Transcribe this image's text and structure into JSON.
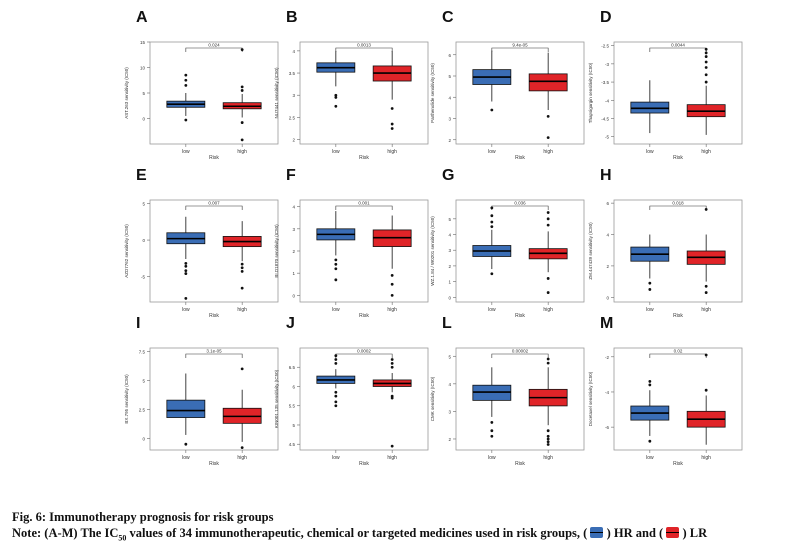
{
  "figure": {
    "title": "Fig. 6: Immunotherapy prognosis for risk groups",
    "note_prefix": "Note: (A-M) The IC",
    "note_sub": "50",
    "note_mid": " values of 34 immunotherapeutic, chemical or targeted medicines used in risk groups, (",
    "note_hr": ") HR and (",
    "note_lr": ") LR",
    "colors": {
      "low": "#3a6db5",
      "high": "#e02428",
      "dots": "#111111",
      "frame": "#9a9a9a"
    }
  },
  "chart_data": [
    {
      "panel": "A",
      "type": "box",
      "ylabel": "AST.263 sensitivity (IC50)",
      "xlabel": "Risk",
      "categories": [
        "low",
        "high"
      ],
      "yticks": [
        0,
        5,
        10,
        15
      ],
      "ylim": [
        -5,
        15
      ],
      "pvalue": "0.024",
      "boxes": [
        {
          "group": "low",
          "q1": 2.2,
          "median": 2.8,
          "q3": 3.4,
          "whisker_low": 0.5,
          "whisker_high": 5.0,
          "outliers": [
            6.5,
            7.5,
            8.5,
            -0.3
          ]
        },
        {
          "group": "high",
          "q1": 1.9,
          "median": 2.4,
          "q3": 3.1,
          "whisker_low": 0.2,
          "whisker_high": 4.8,
          "outliers": [
            5.5,
            6.2,
            13.5,
            -0.8,
            -4.2
          ]
        }
      ]
    },
    {
      "panel": "B",
      "type": "box",
      "ylabel": "NU7441 sensitivity (IC50)",
      "xlabel": "Risk",
      "categories": [
        "low",
        "high"
      ],
      "yticks": [
        2.0,
        2.5,
        3.0,
        3.5,
        4.0
      ],
      "ylim": [
        1.9,
        4.2
      ],
      "pvalue": "0.0013",
      "boxes": [
        {
          "group": "low",
          "q1": 3.52,
          "median": 3.62,
          "q3": 3.73,
          "whisker_low": 3.2,
          "whisker_high": 4.0,
          "outliers": [
            3.0,
            2.95,
            2.75
          ]
        },
        {
          "group": "high",
          "q1": 3.32,
          "median": 3.5,
          "q3": 3.66,
          "whisker_low": 2.9,
          "whisker_high": 4.0,
          "outliers": [
            2.7,
            2.35,
            2.25
          ]
        }
      ]
    },
    {
      "panel": "C",
      "type": "box",
      "ylabel": "Parthenolide sensitivity (IC50)",
      "xlabel": "Risk",
      "categories": [
        "low",
        "high"
      ],
      "yticks": [
        2,
        3,
        4,
        5,
        6
      ],
      "ylim": [
        1.8,
        6.6
      ],
      "pvalue": "9.4e-05",
      "boxes": [
        {
          "group": "low",
          "q1": 4.6,
          "median": 4.95,
          "q3": 5.3,
          "whisker_low": 3.8,
          "whisker_high": 6.2,
          "outliers": [
            3.4
          ]
        },
        {
          "group": "high",
          "q1": 4.3,
          "median": 4.75,
          "q3": 5.1,
          "whisker_low": 3.4,
          "whisker_high": 6.1,
          "outliers": [
            3.1,
            2.1
          ]
        }
      ]
    },
    {
      "panel": "D",
      "type": "box",
      "ylabel": "Thapsigargin sensitivity (IC50)",
      "xlabel": "Risk",
      "categories": [
        "low",
        "high"
      ],
      "yticks": [
        -5.0,
        -4.5,
        -4.0,
        -3.5,
        -3.0,
        -2.5
      ],
      "ylim": [
        -5.2,
        -2.4
      ],
      "pvalue": "0.0044",
      "boxes": [
        {
          "group": "low",
          "q1": -4.35,
          "median": -4.22,
          "q3": -4.05,
          "whisker_low": -4.9,
          "whisker_high": -3.45,
          "outliers": []
        },
        {
          "group": "high",
          "q1": -4.45,
          "median": -4.3,
          "q3": -4.12,
          "whisker_low": -4.95,
          "whisker_high": -3.6,
          "outliers": [
            -3.5,
            -3.3,
            -3.1,
            -2.95,
            -2.8,
            -2.7,
            -2.6
          ]
        }
      ]
    },
    {
      "panel": "E",
      "type": "box",
      "ylabel": "AZD7762 sensitivity (IC50)",
      "xlabel": "Risk",
      "categories": [
        "low",
        "high"
      ],
      "yticks": [
        -5,
        0,
        5
      ],
      "ylim": [
        -8.5,
        5.5
      ],
      "pvalue": "0.007",
      "boxes": [
        {
          "group": "low",
          "q1": -0.5,
          "median": 0.2,
          "q3": 1.0,
          "whisker_low": -2.6,
          "whisker_high": 3.2,
          "outliers": [
            -3.2,
            -3.6,
            -4.2,
            -4.6,
            -8.0
          ]
        },
        {
          "group": "high",
          "q1": -0.9,
          "median": -0.2,
          "q3": 0.5,
          "whisker_low": -2.9,
          "whisker_high": 2.6,
          "outliers": [
            -3.3,
            -3.8,
            -4.3,
            -6.6
          ]
        }
      ]
    },
    {
      "panel": "F",
      "type": "box",
      "ylabel": "BI.D1870 sensitivity (IC50)",
      "xlabel": "Risk",
      "categories": [
        "low",
        "high"
      ],
      "yticks": [
        0,
        1,
        2,
        3,
        4
      ],
      "ylim": [
        -0.3,
        4.3
      ],
      "pvalue": "0.001",
      "boxes": [
        {
          "group": "low",
          "q1": 2.5,
          "median": 2.75,
          "q3": 3.0,
          "whisker_low": 1.8,
          "whisker_high": 3.8,
          "outliers": [
            1.6,
            1.4,
            1.2,
            0.7
          ]
        },
        {
          "group": "high",
          "q1": 2.2,
          "median": 2.6,
          "q3": 2.95,
          "whisker_low": 1.2,
          "whisker_high": 3.6,
          "outliers": [
            0.9,
            0.5,
            0.0
          ]
        }
      ]
    },
    {
      "panel": "G",
      "type": "box",
      "ylabel": "WZ.1.84 / W0201 sensitivity (IC50)",
      "xlabel": "Risk",
      "categories": [
        "low",
        "high"
      ],
      "yticks": [
        0,
        1,
        2,
        3,
        4,
        5
      ],
      "ylim": [
        -0.3,
        6.2
      ],
      "pvalue": "0.036",
      "boxes": [
        {
          "group": "low",
          "q1": 2.6,
          "median": 2.95,
          "q3": 3.3,
          "whisker_low": 1.8,
          "whisker_high": 4.3,
          "outliers": [
            1.5,
            4.5,
            4.8,
            5.2,
            5.7
          ]
        },
        {
          "group": "high",
          "q1": 2.45,
          "median": 2.8,
          "q3": 3.1,
          "whisker_low": 1.6,
          "whisker_high": 4.2,
          "outliers": [
            1.2,
            0.3,
            4.6,
            5.0,
            5.4
          ]
        }
      ]
    },
    {
      "panel": "H",
      "type": "box",
      "ylabel": "ZM.447439 sensitivity (IC50)",
      "xlabel": "Risk",
      "categories": [
        "low",
        "high"
      ],
      "yticks": [
        0,
        2,
        4,
        6
      ],
      "ylim": [
        -0.3,
        6.2
      ],
      "pvalue": "0.018",
      "boxes": [
        {
          "group": "low",
          "q1": 2.3,
          "median": 2.75,
          "q3": 3.2,
          "whisker_low": 1.2,
          "whisker_high": 4.0,
          "outliers": [
            0.9,
            0.5
          ]
        },
        {
          "group": "high",
          "q1": 2.1,
          "median": 2.55,
          "q3": 2.95,
          "whisker_low": 1.0,
          "whisker_high": 4.0,
          "outliers": [
            0.7,
            0.3,
            5.6
          ]
        }
      ]
    },
    {
      "panel": "I",
      "type": "box",
      "ylabel": "BX.795 sensitivity (IC50)",
      "xlabel": "Risk",
      "categories": [
        "low",
        "high"
      ],
      "yticks": [
        0.0,
        2.5,
        5.0,
        7.5
      ],
      "ylim": [
        -1.0,
        7.8
      ],
      "pvalue": "3.1e-05",
      "boxes": [
        {
          "group": "low",
          "q1": 1.8,
          "median": 2.4,
          "q3": 3.3,
          "whisker_low": 0.3,
          "whisker_high": 5.6,
          "outliers": [
            -0.5
          ]
        },
        {
          "group": "high",
          "q1": 1.3,
          "median": 1.9,
          "q3": 2.6,
          "whisker_low": -0.3,
          "whisker_high": 4.2,
          "outliers": [
            6.0,
            -0.8
          ]
        }
      ]
    },
    {
      "panel": "J",
      "type": "box",
      "ylabel": "KIN001.135 sensitivity (IC50)",
      "xlabel": "Risk",
      "categories": [
        "low",
        "high"
      ],
      "yticks": [
        4.5,
        5.0,
        5.5,
        6.0,
        6.5
      ],
      "ylim": [
        4.35,
        7.0
      ],
      "pvalue": "0.0002",
      "boxes": [
        {
          "group": "low",
          "q1": 6.08,
          "median": 6.17,
          "q3": 6.27,
          "whisker_low": 5.95,
          "whisker_high": 6.45,
          "outliers": [
            5.85,
            5.75,
            5.6,
            5.5,
            6.6,
            6.7,
            6.8
          ]
        },
        {
          "group": "high",
          "q1": 6.0,
          "median": 6.08,
          "q3": 6.17,
          "whisker_low": 5.85,
          "whisker_high": 6.35,
          "outliers": [
            5.75,
            5.7,
            6.5,
            6.6,
            6.7,
            4.45
          ]
        }
      ]
    },
    {
      "panel": "L",
      "type": "box",
      "ylabel": "CMK sensitivity (IC50)",
      "xlabel": "Risk",
      "categories": [
        "low",
        "high"
      ],
      "yticks": [
        2,
        3,
        4,
        5
      ],
      "ylim": [
        1.6,
        5.3
      ],
      "pvalue": "0.00002",
      "boxes": [
        {
          "group": "low",
          "q1": 3.4,
          "median": 3.7,
          "q3": 3.95,
          "whisker_low": 2.8,
          "whisker_high": 4.6,
          "outliers": [
            2.6,
            2.3,
            2.1
          ]
        },
        {
          "group": "high",
          "q1": 3.2,
          "median": 3.5,
          "q3": 3.8,
          "whisker_low": 2.5,
          "whisker_high": 4.6,
          "outliers": [
            2.3,
            2.1,
            2.0,
            1.9,
            1.8,
            4.75,
            4.9
          ]
        }
      ]
    },
    {
      "panel": "M",
      "type": "box",
      "ylabel": "Docetaxel sensitivity (IC50)",
      "xlabel": "Risk",
      "categories": [
        "low",
        "high"
      ],
      "yticks": [
        -6,
        -4,
        -2
      ],
      "ylim": [
        -7.3,
        -1.5
      ],
      "pvalue": "0.02",
      "boxes": [
        {
          "group": "low",
          "q1": -5.6,
          "median": -5.2,
          "q3": -4.8,
          "whisker_low": -6.5,
          "whisker_high": -3.9,
          "outliers": [
            -3.6,
            -3.4,
            -6.8
          ]
        },
        {
          "group": "high",
          "q1": -6.0,
          "median": -5.55,
          "q3": -5.1,
          "whisker_low": -7.0,
          "whisker_high": -4.2,
          "outliers": [
            -3.9,
            -1.9
          ]
        }
      ]
    }
  ]
}
